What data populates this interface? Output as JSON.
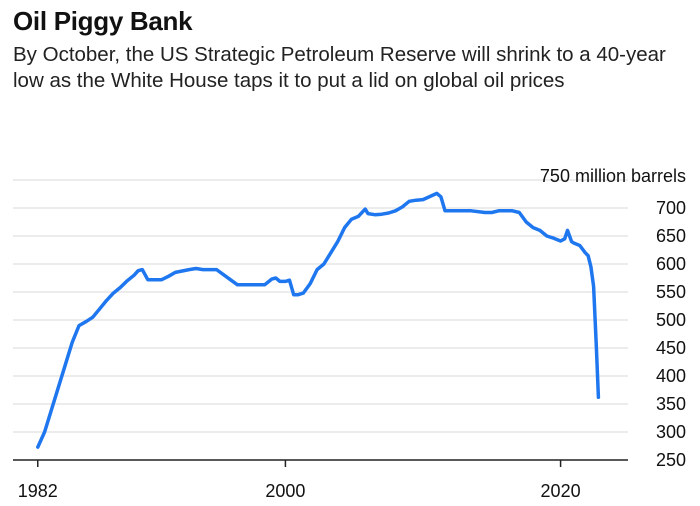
{
  "header": {
    "title": "Oil Piggy Bank",
    "subtitle": "By October, the US Strategic Petroleum Reserve will shrink to a 40-year low as the White House taps it to put a lid on global oil prices"
  },
  "colors": {
    "line": "#1f77f0",
    "grid": "#d9d9d9",
    "axis": "#222222"
  },
  "chart_data": {
    "type": "line",
    "title": "Oil Piggy Bank",
    "subtitle": "By October, the US Strategic Petroleum Reserve will shrink to a 40-year low as the White House taps it to put a lid on global oil prices",
    "xlabel": "",
    "ylabel": "million barrels",
    "unit_label": "750 million barrels",
    "xlim": [
      1980.2,
      2024.9
    ],
    "ylim": [
      250,
      750
    ],
    "yticks": [
      250,
      300,
      350,
      400,
      450,
      500,
      550,
      600,
      650,
      700,
      750
    ],
    "ytick_labels": [
      "250",
      "300",
      "350",
      "400",
      "450",
      "500",
      "550",
      "600",
      "650",
      "700"
    ],
    "xticks": [
      1982,
      2000,
      2020
    ],
    "xtick_labels": [
      "1982",
      "2000",
      "2020"
    ],
    "grid": true,
    "series": [
      {
        "name": "US Strategic Petroleum Reserve",
        "x": [
          1982.0,
          1982.5,
          1983.0,
          1983.5,
          1984.0,
          1984.5,
          1985.0,
          1985.5,
          1986.0,
          1986.5,
          1987.0,
          1987.5,
          1988.0,
          1988.5,
          1989.0,
          1989.3,
          1989.6,
          1990.0,
          1990.5,
          1991.0,
          1991.5,
          1992.0,
          1993.0,
          1993.5,
          1994.0,
          1995.0,
          1996.0,
          1996.5,
          1997.0,
          1998.0,
          1998.5,
          1999.0,
          1999.3,
          1999.6,
          2000.0,
          2000.3,
          2000.6,
          2000.9,
          2001.3,
          2001.8,
          2002.3,
          2002.8,
          2003.3,
          2003.8,
          2004.3,
          2004.8,
          2005.3,
          2005.8,
          2006.0,
          2006.5,
          2007.0,
          2007.5,
          2008.0,
          2008.5,
          2009.0,
          2009.5,
          2010.0,
          2011.0,
          2011.3,
          2011.6,
          2012.5,
          2013.5,
          2014.5,
          2015.0,
          2015.5,
          2016.0,
          2016.5,
          2017.0,
          2017.5,
          2018.0,
          2018.5,
          2019.0,
          2019.5,
          2020.0,
          2020.3,
          2020.5,
          2020.8,
          2021.0,
          2021.4,
          2021.8,
          2022.0,
          2022.2,
          2022.4,
          2022.6,
          2022.75
        ],
        "values": [
          273,
          300,
          340,
          380,
          420,
          460,
          490,
          497,
          505,
          520,
          535,
          548,
          558,
          570,
          580,
          588,
          590,
          572,
          572,
          572,
          578,
          585,
          590,
          592,
          590,
          590,
          572,
          563,
          563,
          563,
          563,
          573,
          575,
          569,
          569,
          571,
          545,
          545,
          548,
          565,
          590,
          600,
          620,
          640,
          665,
          680,
          685,
          698,
          690,
          688,
          689,
          691,
          695,
          702,
          712,
          714,
          715,
          726,
          720,
          695,
          695,
          695,
          692,
          692,
          695,
          695,
          695,
          692,
          675,
          665,
          660,
          650,
          646,
          641,
          645,
          660,
          640,
          637,
          633,
          620,
          615,
          595,
          560,
          450,
          362
        ]
      }
    ]
  }
}
